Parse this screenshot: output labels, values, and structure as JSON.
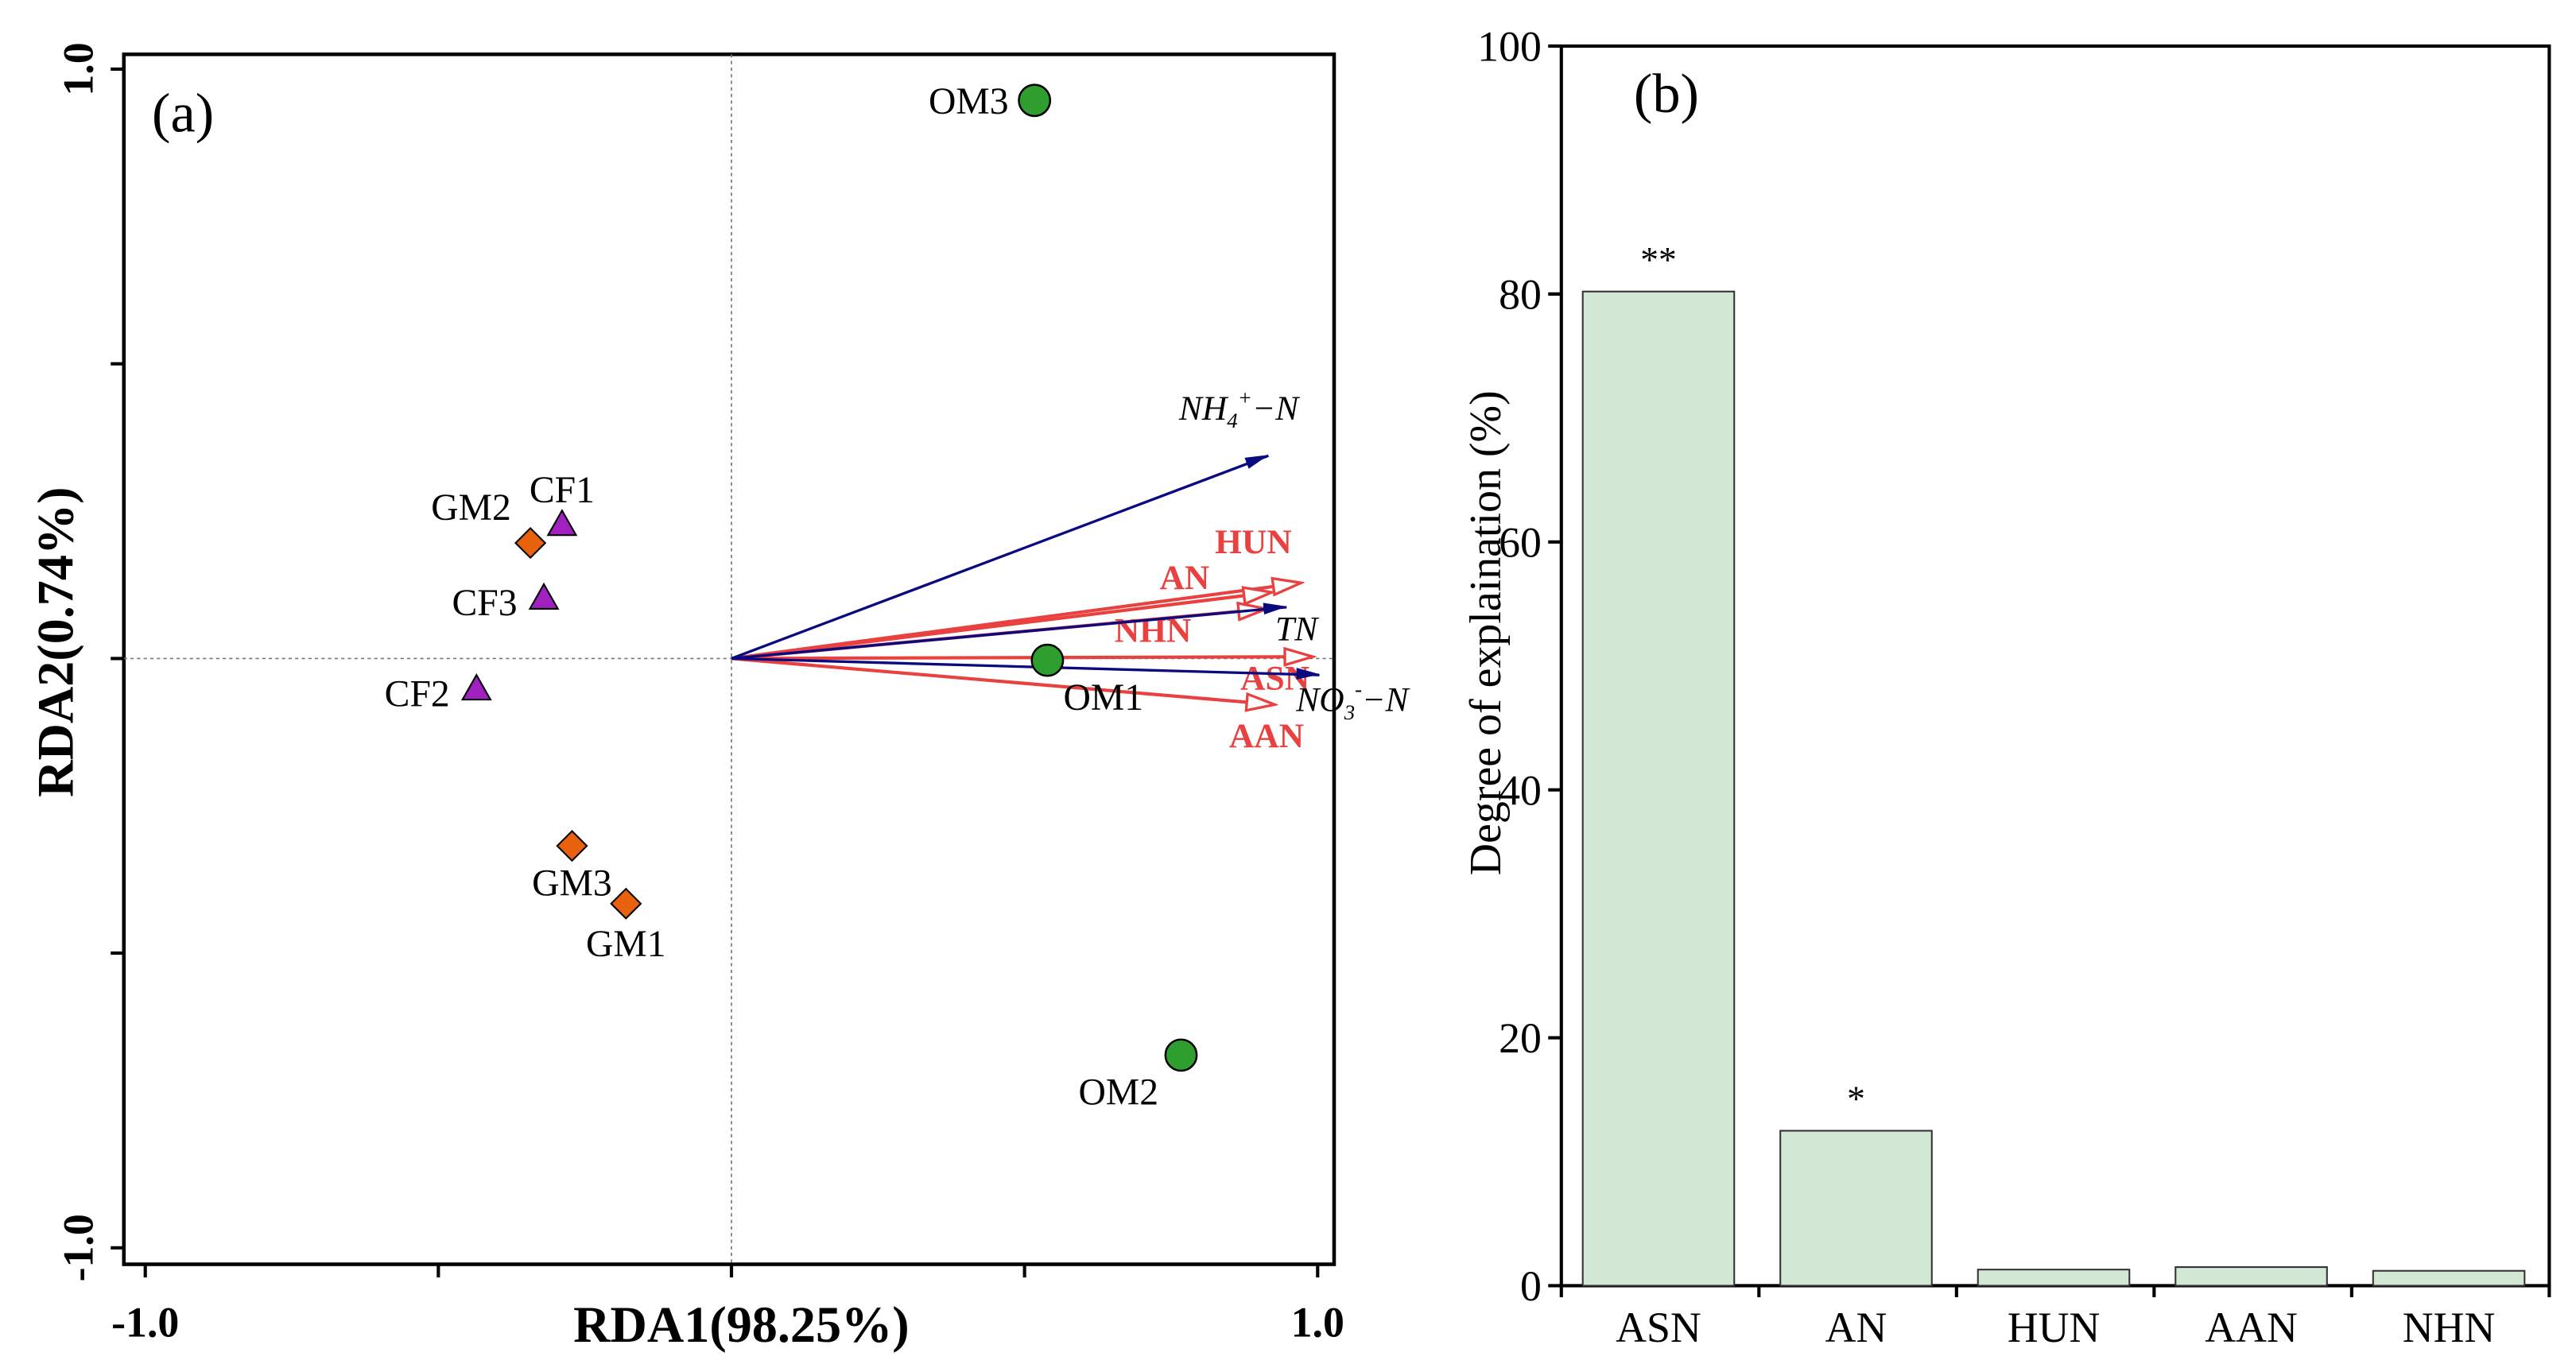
{
  "colors": {
    "response_arrow": "#e8413f",
    "env_arrow": "#0a0a80",
    "OM": "#2e9e2e",
    "GM": "#e8620e",
    "CF": "#a020c0",
    "bar_fill": "#d3e7d5"
  },
  "chart_data": [
    {
      "type": "scatter",
      "panel_label": "(a)",
      "xlabel": "RDA1(98.25%)",
      "ylabel": "RDA2(0.74%)",
      "xlim": [
        -1.0,
        1.0
      ],
      "ylim": [
        -1.0,
        1.0
      ],
      "x_tick_labels": [
        "-1.0",
        "1.0"
      ],
      "y_tick_labels": [
        "1.0",
        "-1.0"
      ],
      "x_ticks": [
        -1.0,
        -0.5,
        0,
        0.5,
        1.0
      ],
      "y_ticks": [
        -1.0,
        -0.5,
        0,
        0.5,
        1.0
      ],
      "grid": false,
      "samples": [
        {
          "name": "OM3",
          "group": "OM",
          "x": 0.517,
          "y": 0.947
        },
        {
          "name": "OM1",
          "group": "OM",
          "x": 0.539,
          "y": -0.003
        },
        {
          "name": "OM2",
          "group": "OM",
          "x": 0.767,
          "y": -0.673
        },
        {
          "name": "GM2",
          "group": "GM",
          "x": -0.343,
          "y": 0.196
        },
        {
          "name": "GM3",
          "group": "GM",
          "x": -0.272,
          "y": -0.318
        },
        {
          "name": "GM1",
          "group": "GM",
          "x": -0.18,
          "y": -0.416
        },
        {
          "name": "CF1",
          "group": "CF",
          "x": -0.289,
          "y": 0.226
        },
        {
          "name": "CF3",
          "group": "CF",
          "x": -0.32,
          "y": 0.101
        },
        {
          "name": "CF2",
          "group": "CF",
          "x": -0.435,
          "y": -0.053
        }
      ],
      "env_arrows": [
        {
          "label": "NH4+−N",
          "x": 0.916,
          "y": 0.344
        },
        {
          "label": "TN",
          "x": 0.947,
          "y": 0.087
        },
        {
          "label": "NO3-−N",
          "x": 1.003,
          "y": -0.028
        }
      ],
      "response_arrows": [
        {
          "label": "HUN",
          "x": 0.969,
          "y": 0.128
        },
        {
          "label": "AN",
          "x": 0.919,
          "y": 0.112
        },
        {
          "label": "NHN",
          "x": 0.91,
          "y": 0.084
        },
        {
          "label": "ASN",
          "x": 0.989,
          "y": 0.003
        },
        {
          "label": "AAN",
          "x": 0.924,
          "y": -0.078
        }
      ]
    },
    {
      "type": "bar",
      "panel_label": "(b)",
      "categories": [
        "ASN",
        "AN",
        "HUN",
        "AAN",
        "NHN"
      ],
      "values": [
        80.2,
        12.5,
        1.3,
        1.5,
        1.2
      ],
      "annotations": [
        "**",
        "*",
        "",
        "",
        ""
      ],
      "xlabel": "",
      "ylabel": "Degree of explaination (%)",
      "ylim": [
        0,
        100
      ],
      "y_ticks": [
        0,
        20,
        40,
        60,
        80,
        100
      ],
      "grid": false
    }
  ]
}
